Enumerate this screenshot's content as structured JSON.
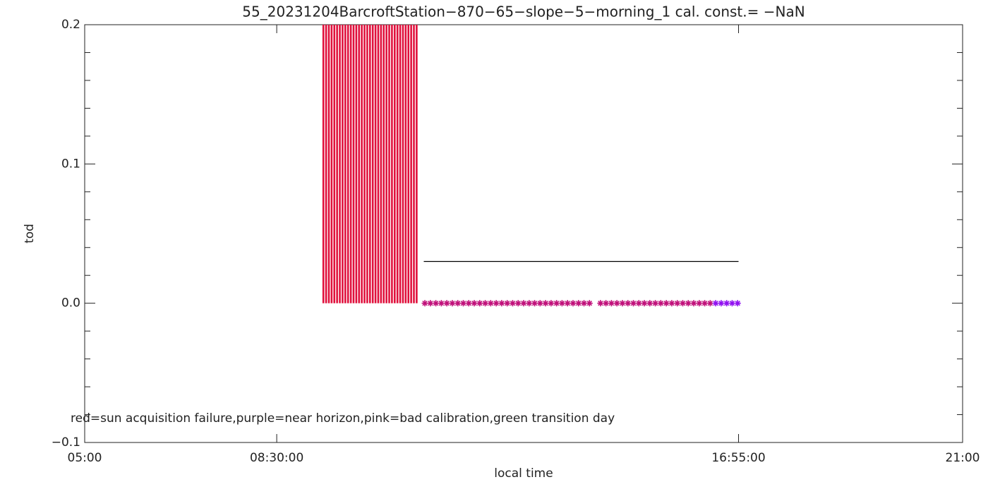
{
  "chart_data": {
    "type": "combo",
    "title": "55_20231204BarcroftStation−870−65−slope−5−morning_1 cal. const.= −NaN",
    "x_label": "local time",
    "y_label": "tod",
    "annotation": "red=sun acquisition failure,purple=near horizon,pink=bad calibration,green transition day",
    "xlim": [
      5,
      21
    ],
    "xticks": [
      {
        "value": 5,
        "label": "05:00"
      },
      {
        "value": 8.5,
        "label": "08:30:00"
      },
      {
        "value": 16.916667,
        "label": "16:55:00"
      },
      {
        "value": 21,
        "label": "21:00"
      }
    ],
    "ylim": [
      -0.1,
      0.2
    ],
    "yticks": [
      {
        "value": -0.1,
        "label": "−0.1"
      },
      {
        "value": 0,
        "label": "0.0"
      },
      0.1,
      0.2
    ],
    "yminorticks": [
      -0.08,
      -0.06,
      -0.04,
      -0.02,
      0.02,
      0.04,
      0.06,
      0.08,
      0.12,
      0.14,
      0.16,
      0.18
    ],
    "series": [
      {
        "type": "bar",
        "color": "#e0103c",
        "x": [
          9.35,
          9.4,
          9.45,
          9.5,
          9.55,
          9.6,
          9.65,
          9.7,
          9.75,
          9.8,
          9.85,
          9.9,
          9.95,
          10,
          10.05,
          10.1,
          10.15,
          10.2,
          10.25,
          10.3,
          10.35,
          10.4,
          10.45,
          10.5,
          10.55,
          10.6,
          10.65,
          10.7,
          10.75,
          10.8,
          10.85,
          10.9,
          10.95,
          11,
          11.05
        ],
        "values": [
          0.2,
          0.2,
          0.2,
          0.2,
          0.2,
          0.2,
          0.2,
          0.2,
          0.2,
          0.2,
          0.2,
          0.2,
          0.2,
          0.2,
          0.2,
          0.2,
          0.2,
          0.2,
          0.2,
          0.2,
          0.2,
          0.2,
          0.2,
          0.2,
          0.2,
          0.2,
          0.2,
          0.2,
          0.2,
          0.2,
          0.2,
          0.2,
          0.2,
          0.2,
          0.2
        ]
      },
      {
        "type": "line",
        "color": "#000000",
        "x": [
          11.18,
          16.916667
        ],
        "values": [
          0.03,
          0.03
        ]
      },
      {
        "type": "scatter",
        "color": "#c0107a",
        "x": [
          11.2,
          11.3,
          11.4,
          11.5,
          11.6,
          11.7,
          11.8,
          11.9,
          12,
          12.1,
          12.2,
          12.3,
          12.4,
          12.5,
          12.6,
          12.7,
          12.8,
          12.9,
          13,
          13.1,
          13.2,
          13.3,
          13.4,
          13.5,
          13.6,
          13.7,
          13.8,
          13.9,
          14,
          14.1,
          14.2,
          14.4,
          14.5,
          14.6,
          14.7,
          14.8,
          14.9,
          15,
          15.1,
          15.2,
          15.3,
          15.4,
          15.5,
          15.6,
          15.7,
          15.8,
          15.9,
          16,
          16.1,
          16.2,
          16.3,
          16.4
        ],
        "values": [
          0,
          0,
          0,
          0,
          0,
          0,
          0,
          0,
          0,
          0,
          0,
          0,
          0,
          0,
          0,
          0,
          0,
          0,
          0,
          0,
          0,
          0,
          0,
          0,
          0,
          0,
          0,
          0,
          0,
          0,
          0,
          0,
          0,
          0,
          0,
          0,
          0,
          0,
          0,
          0,
          0,
          0,
          0,
          0,
          0,
          0,
          0,
          0,
          0,
          0,
          0,
          0
        ]
      },
      {
        "type": "scatter",
        "color": "#9010f0",
        "x": [
          16.5,
          16.6,
          16.7,
          16.8,
          16.9
        ],
        "values": [
          0,
          0,
          0,
          0,
          0
        ]
      }
    ]
  }
}
